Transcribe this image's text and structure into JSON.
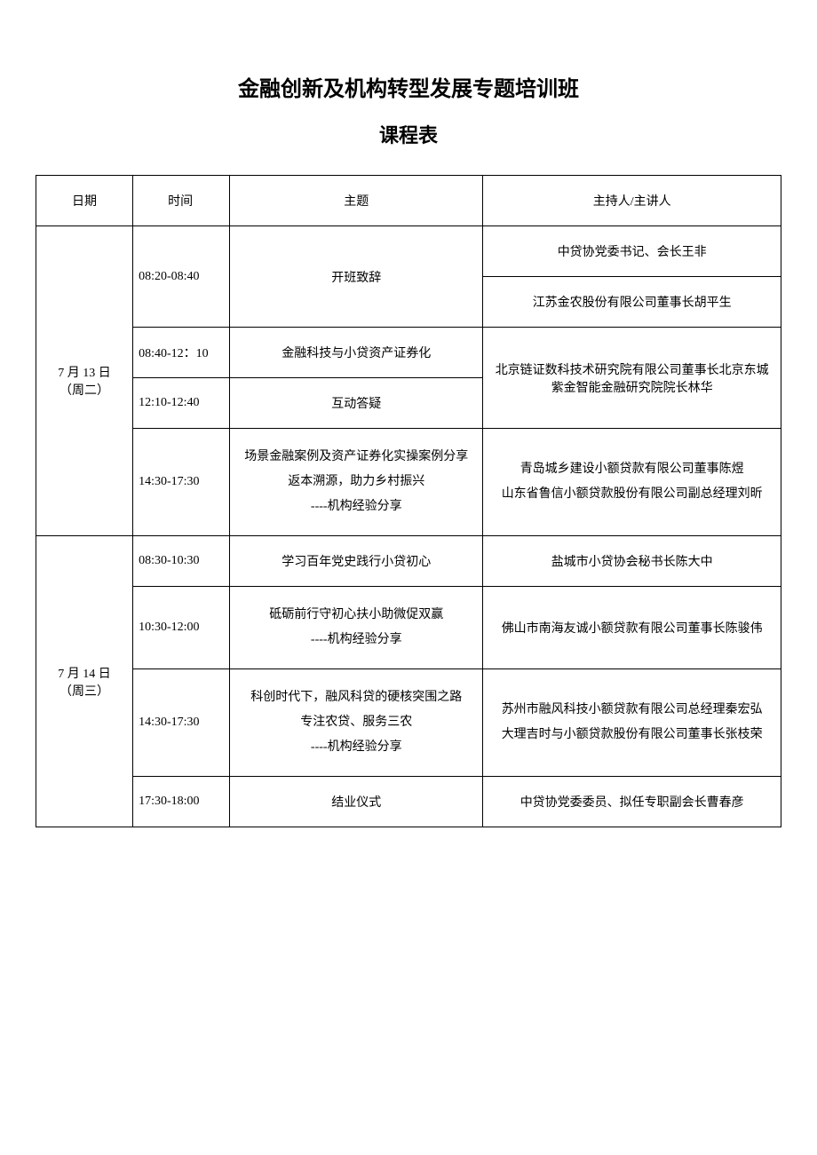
{
  "title": "金融创新及机构转型发展专题培训班",
  "subtitle": "课程表",
  "headers": {
    "date": "日期",
    "time": "时间",
    "topic": "主题",
    "speaker": "主持人/主讲人"
  },
  "day1": {
    "date": "7 月 13 日\n（周二）",
    "row1": {
      "time": "08:20-08:40",
      "topic": "开班致辞",
      "speaker1": "中贷协党委书记、会长王非",
      "speaker2": "江苏金农股份有限公司董事长胡平生"
    },
    "row2": {
      "time": "08:40-12：10",
      "topic": "金融科技与小贷资产证券化",
      "speaker_merged": "北京链证数科技术研究院有限公司董事长北京东城紫金智能金融研究院院长林华"
    },
    "row3": {
      "time": "12:10-12:40",
      "topic": "互动答疑"
    },
    "row4": {
      "time": "14:30-17:30",
      "topic": "场景金融案例及资产证券化实操案例分享\n返本溯源，助力乡村振兴\n----机构经验分享",
      "speaker": "青岛城乡建设小额贷款有限公司董事陈煜\n山东省鲁信小额贷款股份有限公司副总经理刘昕"
    }
  },
  "day2": {
    "date": "7 月 14 日\n（周三）",
    "row1": {
      "time": "08:30-10:30",
      "topic": "学习百年党史践行小贷初心",
      "speaker": "盐城市小贷协会秘书长陈大中"
    },
    "row2": {
      "time": "10:30-12:00",
      "topic": "砥砺前行守初心扶小助微促双赢\n----机构经验分享",
      "speaker": "佛山市南海友诚小额贷款有限公司董事长陈骏伟"
    },
    "row3": {
      "time": "14:30-17:30",
      "topic": "科创时代下，融风科贷的硬核突围之路\n专注农贷、服务三农\n----机构经验分享",
      "speaker": "苏州市融风科技小额贷款有限公司总经理秦宏弘\n大理吉时与小额贷款股份有限公司董事长张枝荣"
    },
    "row4": {
      "time": "17:30-18:00",
      "topic": "结业仪式",
      "speaker": "中贷协党委委员、拟任专职副会长曹春彦"
    }
  }
}
